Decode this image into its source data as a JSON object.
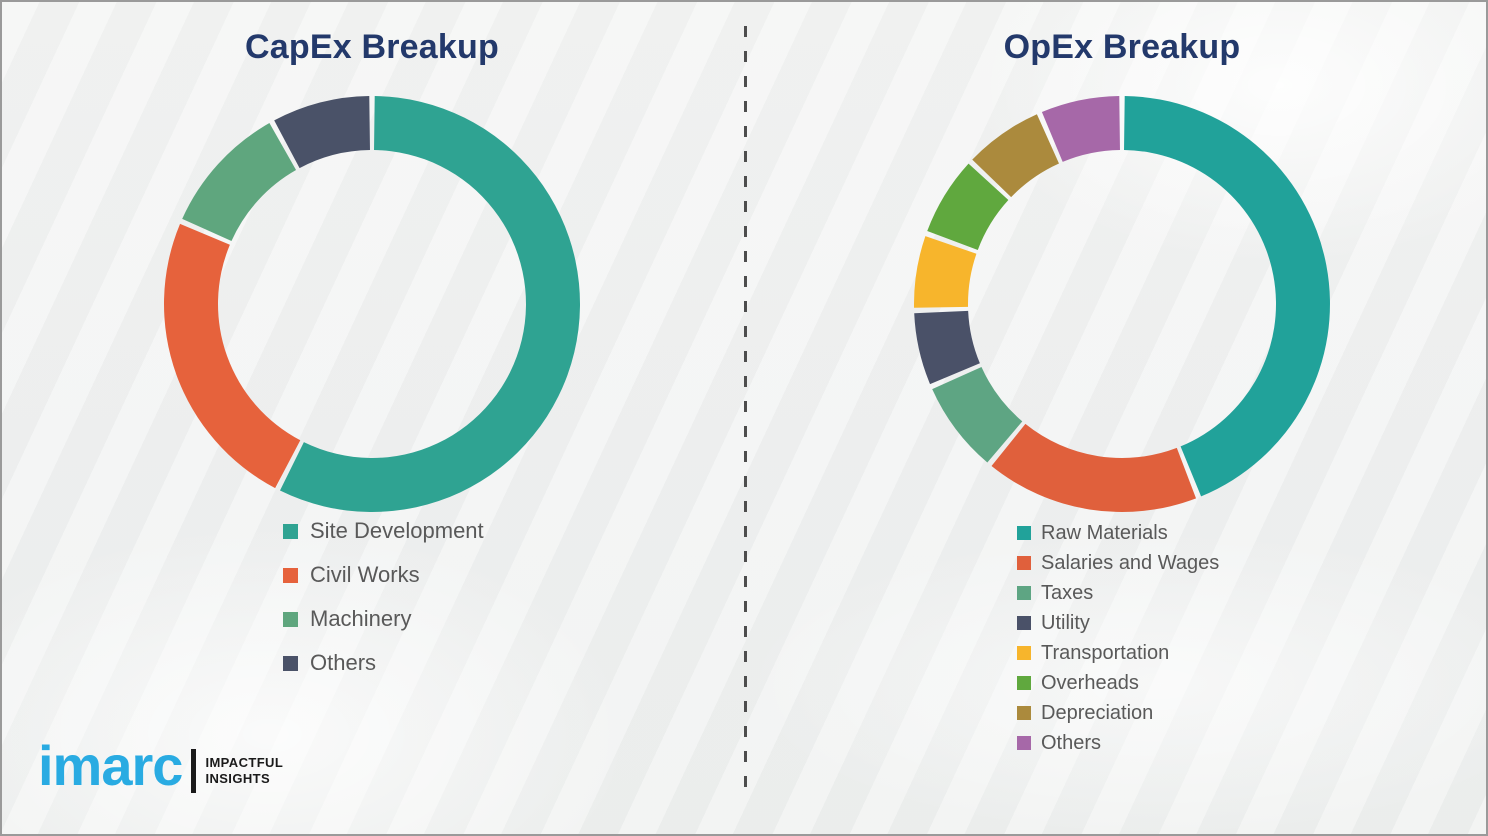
{
  "chart_data": [
    {
      "type": "pie",
      "variant": "donut",
      "title": "CapEx Breakup",
      "labels": [
        "Site Development",
        "Civil Works",
        "Machinery",
        "Others"
      ],
      "values": [
        57.5,
        24,
        10.5,
        8
      ],
      "colors": [
        "#2fa392",
        "#e6623c",
        "#5fa67e",
        "#4a5268"
      ],
      "start_angle_deg": 0,
      "direction": "clockwise",
      "legend_position": "below-left",
      "data_labels_shown": false
    },
    {
      "type": "pie",
      "variant": "donut",
      "title": "OpEx Breakup",
      "labels": [
        "Raw Materials",
        "Salaries and Wages",
        "Taxes",
        "Utility",
        "Transportation",
        "Overheads",
        "Depreciation",
        "Others"
      ],
      "values": [
        44,
        17,
        7.5,
        6,
        6,
        6.5,
        6.5,
        6.5
      ],
      "colors": [
        "#21a29a",
        "#e0603c",
        "#5ea583",
        "#4a5168",
        "#f7b52c",
        "#60a83e",
        "#ab8a3d",
        "#a668a8"
      ],
      "start_angle_deg": 0,
      "direction": "clockwise",
      "legend_position": "below-left",
      "data_labels_shown": false
    }
  ],
  "styles": {
    "title_color": "#23396b",
    "legend_text_color": "#595959",
    "background_color": "#f1f2f1"
  },
  "logo": {
    "brand": "imarc",
    "tagline": [
      "IMPACTFUL",
      "INSIGHTS"
    ],
    "brand_color": "#29abe2"
  }
}
